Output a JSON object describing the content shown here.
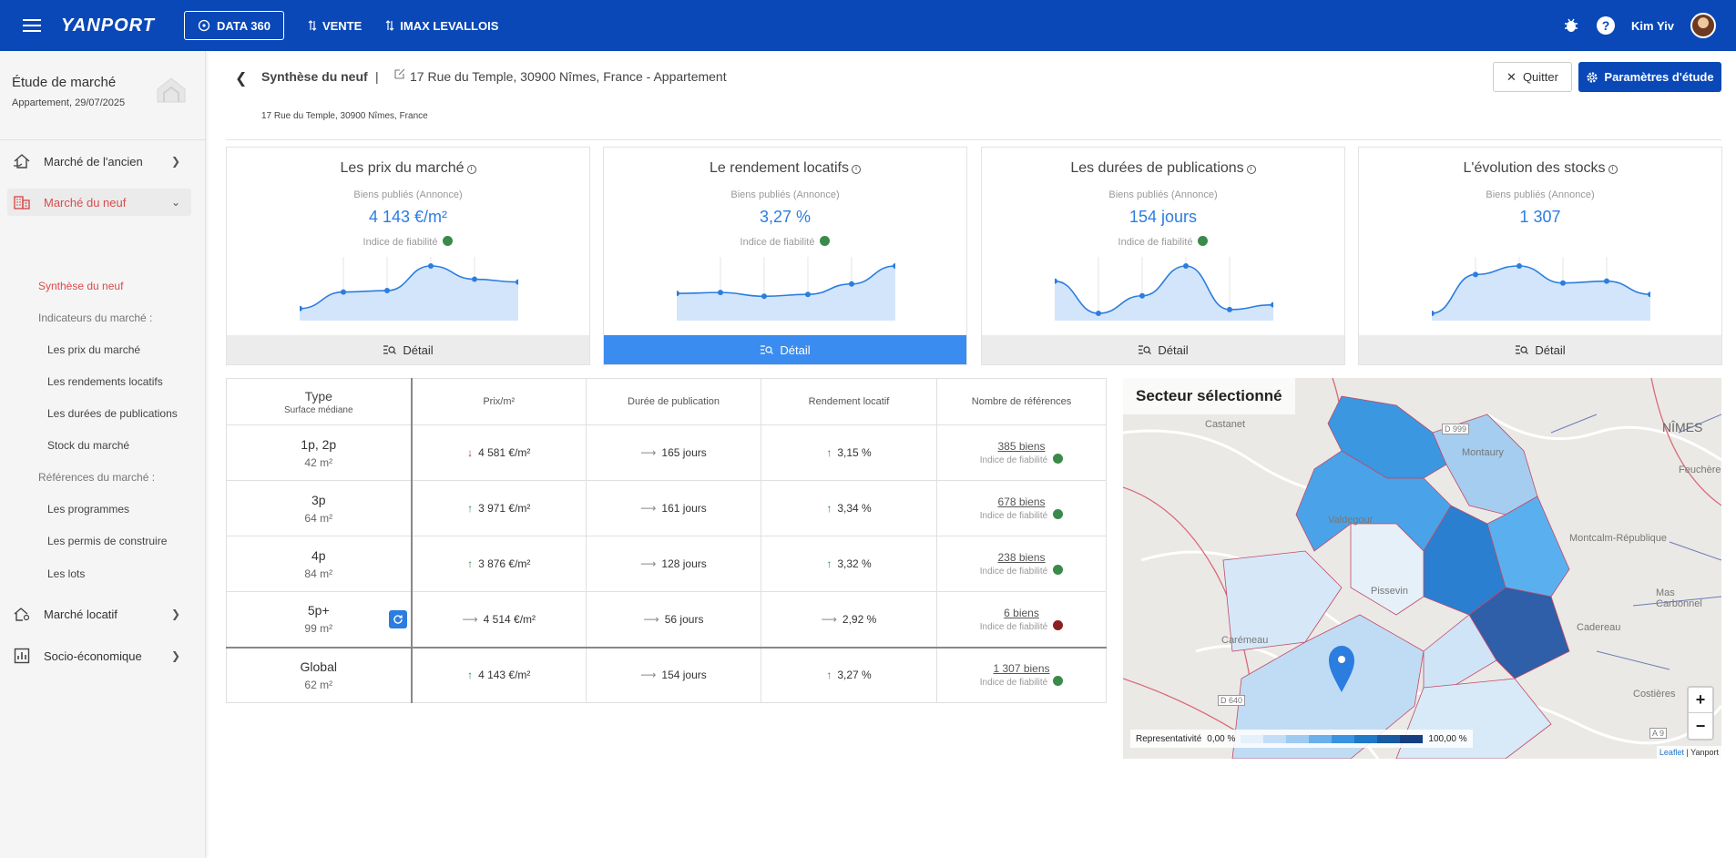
{
  "topbar": {
    "logo": "YANPORT",
    "data_btn": "DATA 360",
    "links": [
      "VENTE",
      "IMAX LEVALLOIS"
    ],
    "user": "Kim Yiv",
    "help": "?"
  },
  "sidebar": {
    "study_title": "Étude de marché",
    "study_sub": "Appartement, 29/07/2025",
    "items": [
      {
        "label": "Marché de l'ancien",
        "icon": "house-hand-icon"
      },
      {
        "label": "Marché du neuf",
        "icon": "building-icon"
      },
      {
        "label": "Marché locatif",
        "icon": "house-key-icon"
      },
      {
        "label": "Socio-économique",
        "icon": "bar-chart-icon"
      }
    ],
    "neuf_sub": {
      "synthese": "Synthèse du neuf",
      "indicateurs": "Indicateurs du marché :",
      "prix": "Les prix du marché",
      "rendements": "Les rendements locatifs",
      "durees": "Les durées de publications",
      "stock": "Stock du marché",
      "references": "Références du marché :",
      "programmes": "Les programmes",
      "permis": "Les permis de construire",
      "lots": "Les lots"
    }
  },
  "header": {
    "title": "Synthèse du neuf",
    "pipe": "|",
    "address": "17 Rue du Temple, 30900 Nîmes, France - Appartement",
    "sub": "17 Rue du Temple, 30900 Nîmes, France",
    "quit": "Quitter",
    "params": "Paramètres d'étude"
  },
  "cards": [
    {
      "title": "Les prix du marché",
      "label": "Biens publiés (Annonce)",
      "value": "4 143 €/m²",
      "reliability": "Indice de fiabilité",
      "detail": "Détail",
      "spark": [
        10,
        45,
        48,
        100,
        72,
        66
      ]
    },
    {
      "title": "Le rendement locatifs",
      "label": "Biens publiés (Annonce)",
      "value": "3,27 %",
      "reliability": "Indice de fiabilité",
      "detail": "Détail",
      "spark": [
        42,
        44,
        36,
        40,
        62,
        100
      ]
    },
    {
      "title": "Les durées de publications",
      "label": "Biens publiés (Annonce)",
      "value": "154 jours",
      "reliability": "Indice de fiabilité",
      "detail": "Détail",
      "spark": [
        68,
        0,
        37,
        100,
        8,
        18
      ]
    },
    {
      "title": "L'évolution des stocks",
      "label": "Biens publiés (Annonce)",
      "value": "1 307",
      "reliability": "",
      "detail": "Détail",
      "spark": [
        0,
        82,
        100,
        64,
        68,
        40
      ]
    }
  ],
  "table": {
    "headers": {
      "type": "Type",
      "type_sub": "Surface médiane",
      "prix": "Prix/m²",
      "duree": "Durée de publication",
      "rendement": "Rendement locatif",
      "refs": "Nombre de références"
    },
    "reliability_label": "Indice de fiabilité",
    "rows": [
      {
        "type": "1p, 2p",
        "surface": "42 m²",
        "prix": "4 581 €/m²",
        "prix_trend": "down",
        "duree": "165 jours",
        "duree_trend": "flat",
        "rendement": "3,15 %",
        "rend_trend": "up",
        "refs": "385 biens",
        "rel_color": "#3a8a4a"
      },
      {
        "type": "3p",
        "surface": "64 m²",
        "prix": "3 971 €/m²",
        "prix_trend": "up",
        "duree": "161 jours",
        "duree_trend": "flat",
        "rendement": "3,34 %",
        "rend_trend": "up",
        "refs": "678 biens",
        "rel_color": "#3a8a4a"
      },
      {
        "type": "4p",
        "surface": "84 m²",
        "prix": "3 876 €/m²",
        "prix_trend": "up",
        "duree": "128 jours",
        "duree_trend": "flat",
        "rendement": "3,32 %",
        "rend_trend": "up",
        "refs": "238 biens",
        "rel_color": "#3a8a4a"
      },
      {
        "type": "5p+",
        "surface": "99 m²",
        "prix": "4 514 €/m²",
        "prix_trend": "flat",
        "duree": "56 jours",
        "duree_trend": "flat",
        "rendement": "2,92 %",
        "rend_trend": "flat",
        "refs": "6 biens",
        "rel_color": "#8b2020"
      }
    ],
    "global": {
      "type": "Global",
      "surface": "62 m²",
      "prix": "4 143 €/m²",
      "prix_trend": "up",
      "duree": "154 jours",
      "duree_trend": "flat",
      "rendement": "3,27 %",
      "rend_trend": "up",
      "refs": "1 307 biens",
      "rel_color": "#3a8a4a"
    }
  },
  "map": {
    "title": "Secteur sélectionné",
    "legend_label": "Representativité",
    "legend_min": "0,00 %",
    "legend_max": "100,00 %",
    "zoom_in": "+",
    "zoom_out": "−",
    "attrib_leaflet": "Leaflet",
    "attrib_rest": "| Yanport",
    "labels": [
      "Castanet",
      "NÎMES",
      "Montaury",
      "Feuchères",
      "Valdegour",
      "Montcalm-République",
      "Pissevin",
      "Mas Carbonnel",
      "Carémeau",
      "Cadereau",
      "Costières",
      "D 640",
      "D 999",
      "A 9"
    ],
    "legend_colors": [
      "#e4f0fb",
      "#c3ddf6",
      "#9fcaf1",
      "#6bb0ea",
      "#3a93e0",
      "#1f78c8",
      "#1a5aa0",
      "#153f80"
    ]
  },
  "colors": {
    "brand": "#0a48b8",
    "accent": "#d94b4b",
    "value_blue": "#2b7de0"
  }
}
